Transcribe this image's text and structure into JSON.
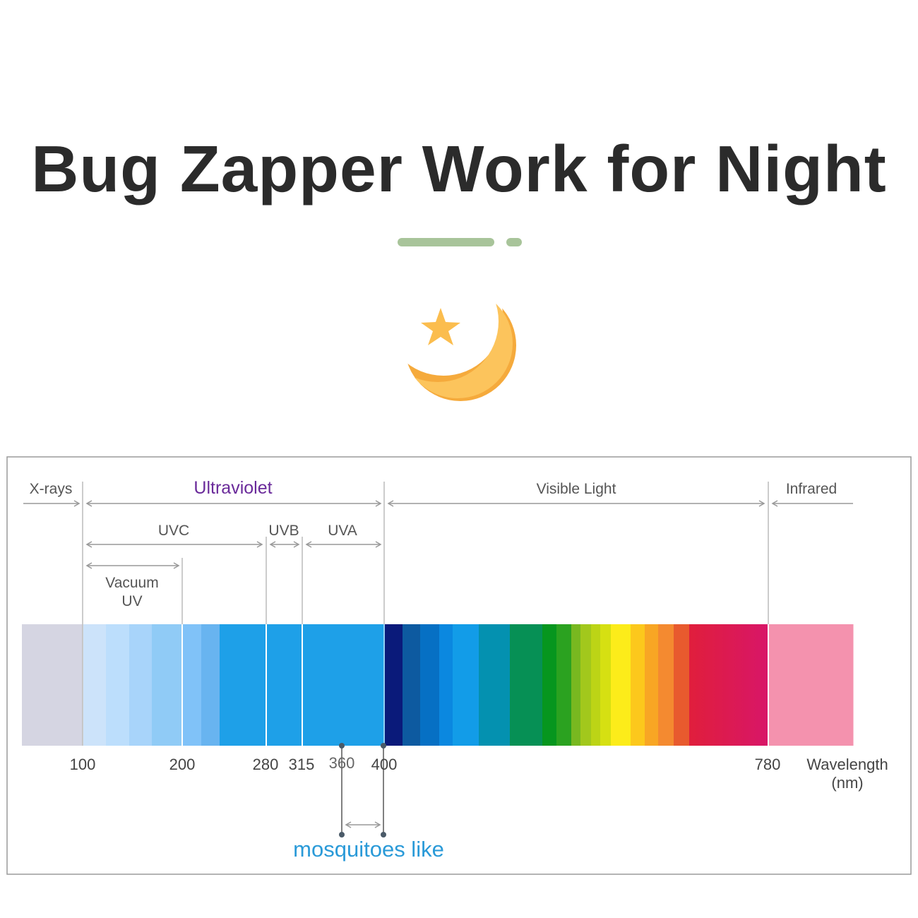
{
  "title": "Bug Zapper Work for Night",
  "accent_colors": {
    "divider": "#a8c49a",
    "moon": "#fbc25a",
    "moon_shadow": "#f5a93a",
    "ultraviolet_label": "#6a2a9a",
    "mosquito_label": "#2a9ad8"
  },
  "icons": [
    "moon-star-icon"
  ],
  "regions": {
    "xrays": "X-rays",
    "ultraviolet": "Ultraviolet",
    "visible": "Visible Light",
    "infrared": "Infrared",
    "uvc": "UVC",
    "uvb": "UVB",
    "uva": "UVA",
    "vacuum_uv_line1": "Vacuum",
    "vacuum_uv_line2": "UV"
  },
  "ticks": [
    "100",
    "200",
    "280",
    "315",
    "360",
    "400",
    "780"
  ],
  "axis_label_line1": "Wavelength",
  "axis_label_line2": "(nm)",
  "mosquito_label": "mosquitoes like",
  "spectrum_colors": {
    "xrays": [
      "#d5d5e2"
    ],
    "uv": [
      "#cce3fa",
      "#bcdefc",
      "#a8d4fa",
      "#90cbf6",
      "#80c2f8",
      "#68b4f0",
      "#1ea0e8",
      "#1ea0e8",
      "#1ea0e8"
    ],
    "visible": [
      "#0a1a7a",
      "#0d5aa0",
      "#0670c4",
      "#0b88e0",
      "#129ce8",
      "#0491b0",
      "#069055",
      "#06961e",
      "#2ba220",
      "#78b820",
      "#a2c81c",
      "#bcd416",
      "#d6e012",
      "#fcec1a",
      "#fcc81c",
      "#f8a624",
      "#f48a30",
      "#e85a2e",
      "#e01e3c"
    ],
    "infrared": [
      "#f492ae"
    ]
  }
}
